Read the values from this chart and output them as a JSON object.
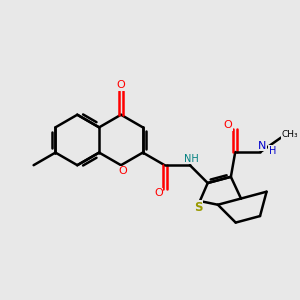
{
  "bg_color": "#e8e8e8",
  "bond_color": "#000000",
  "bond_width": 1.8,
  "figsize": [
    3.0,
    3.0
  ],
  "dpi": 100,
  "colors": {
    "O": "#ff0000",
    "N_blue": "#0000cc",
    "N_teal": "#008080",
    "S": "#999900",
    "C": "#000000"
  },
  "xlim": [
    0,
    10
  ],
  "ylim": [
    0,
    10
  ]
}
